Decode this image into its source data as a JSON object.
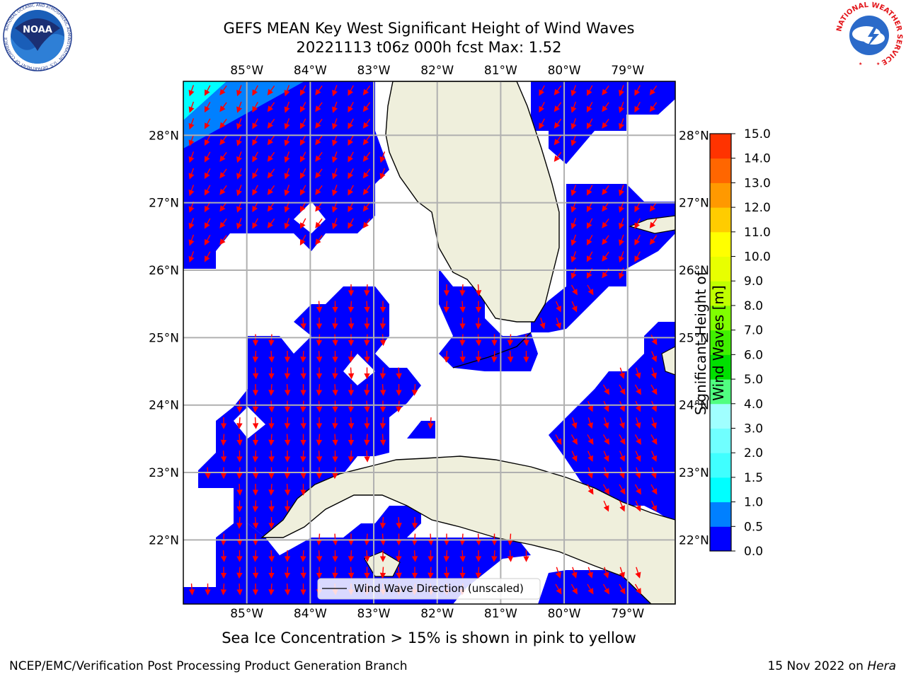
{
  "title": {
    "line1": "GEFS MEAN Key West Significant Height of Wind Waves",
    "line2": "20221113 t06z 000h fcst   Max: 1.52"
  },
  "logos": {
    "left_text": "NOAA",
    "left_ring": "NATIONAL OCEANIC AND ATMOSPHERIC ADMINISTRATION · U.S. DEPARTMENT OF COMMERCE",
    "right_ring": "NATIONAL WEATHER SERVICE"
  },
  "map": {
    "lon_range": [
      -86,
      -78.25
    ],
    "lat_range": [
      21.05,
      28.8
    ],
    "lon_ticks": [
      "85°W",
      "84°W",
      "83°W",
      "82°W",
      "81°W",
      "80°W",
      "79°W"
    ],
    "lon_tick_values": [
      -85,
      -84,
      -83,
      -82,
      -81,
      -80,
      -79
    ],
    "lat_ticks": [
      "28°N",
      "27°N",
      "26°N",
      "25°N",
      "24°N",
      "23°N",
      "22°N"
    ],
    "lat_tick_values": [
      28,
      27,
      26,
      25,
      24,
      23,
      22
    ],
    "grid": true,
    "colors": {
      "ocean_fill": "#0000ff",
      "land": "#efefdc",
      "arrow": "#ff0000",
      "grid": "#b0b0b0"
    },
    "legend_label": "Wind Wave Direction (unscaled)"
  },
  "colorbar": {
    "label": "Significant Height of Wind Waves [m]",
    "ticks": [
      "0.0",
      "0.5",
      "1.0",
      "1.5",
      "2.0",
      "3.0",
      "4.0",
      "5.0",
      "6.0",
      "7.0",
      "8.0",
      "9.0",
      "10.0",
      "11.0",
      "12.0",
      "13.0",
      "14.0",
      "15.0"
    ],
    "colors": [
      "#0000ff",
      "#0080ff",
      "#00ffff",
      "#40ffff",
      "#70ffff",
      "#a0ffff",
      "#50ff80",
      "#00e000",
      "#40f000",
      "#80ff00",
      "#c0ff00",
      "#e8ff00",
      "#ffff00",
      "#ffcc00",
      "#ff9900",
      "#ff6600",
      "#ff3300",
      "#ff0000"
    ]
  },
  "footnote": "Sea Ice Concentration > 15% is shown in pink to yellow",
  "credit_left": "NCEP/EMC/Verification Post Processing Product Generation Branch",
  "credit_right_date": "15 Nov 2022 on ",
  "credit_right_host": "Hera"
}
